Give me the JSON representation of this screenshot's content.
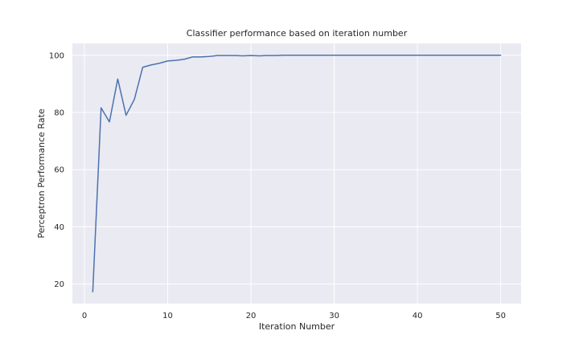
{
  "chart_data": {
    "type": "line",
    "title": "Classifier performance based on iteration number",
    "xlabel": "Iteration Number",
    "ylabel": "Perceptron Performance Rate",
    "xlim": [
      -1.45,
      52.45
    ],
    "ylim": [
      13.15,
      104.15
    ],
    "xticks": [
      0,
      10,
      20,
      30,
      40,
      50
    ],
    "yticks": [
      20,
      40,
      60,
      80,
      100
    ],
    "grid": true,
    "background_color": "#eaeaf2",
    "grid_color": "#ffffff",
    "series": [
      {
        "color": "#4c72b0",
        "x": [
          1,
          2,
          3,
          4,
          5,
          6,
          7,
          8,
          9,
          10,
          11,
          12,
          13,
          14,
          15,
          16,
          17,
          18,
          19,
          20,
          21,
          22,
          23,
          24,
          25,
          26,
          27,
          28,
          29,
          30,
          31,
          32,
          33,
          34,
          35,
          36,
          37,
          38,
          39,
          40,
          41,
          42,
          43,
          44,
          45,
          46,
          47,
          48,
          49,
          50
        ],
        "y": [
          17.3,
          81.6,
          76.7,
          91.7,
          79.0,
          84.6,
          95.8,
          96.6,
          97.2,
          98.0,
          98.2,
          98.6,
          99.4,
          99.4,
          99.6,
          99.9,
          99.9,
          99.9,
          99.8,
          99.9,
          99.8,
          99.9,
          99.9,
          100,
          100,
          100,
          100,
          100,
          100,
          100,
          100,
          100,
          100,
          100,
          100,
          100,
          100,
          100,
          100,
          100,
          100,
          100,
          100,
          100,
          100,
          100,
          100,
          100,
          100,
          100
        ]
      }
    ]
  }
}
